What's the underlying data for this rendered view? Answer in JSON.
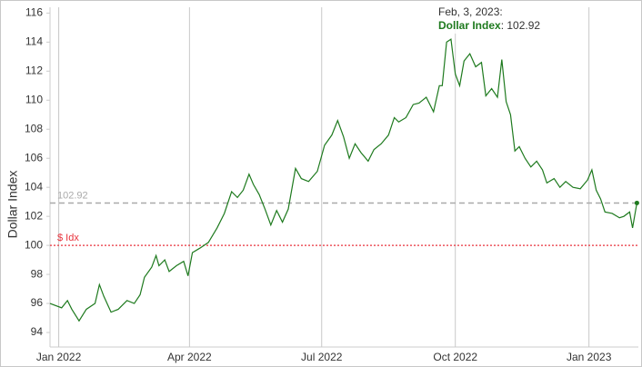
{
  "chart_data": {
    "type": "line",
    "y_label": "Dollar Index",
    "series": [
      {
        "name": "Dollar Index",
        "color": "#1e7a1e",
        "x": [
          -6,
          2,
          6,
          9,
          14,
          19,
          25,
          28,
          31,
          36,
          41,
          47,
          52,
          56,
          59,
          64,
          67,
          69,
          73,
          76,
          81,
          86,
          89,
          92,
          97,
          103,
          109,
          114,
          119,
          123,
          127,
          131,
          134,
          138,
          142,
          146,
          150,
          154,
          158,
          163,
          167,
          172,
          178,
          183,
          188,
          192,
          196,
          200,
          204,
          208,
          213,
          217,
          222,
          227,
          231,
          234,
          239,
          244,
          248,
          253,
          258,
          262,
          264,
          267,
          270,
          273,
          276,
          279,
          283,
          287,
          291,
          294,
          298,
          302,
          305,
          308,
          311,
          314,
          317,
          321,
          325,
          329,
          333,
          336,
          341,
          345,
          349,
          354,
          359,
          364,
          367,
          370,
          373,
          376,
          381,
          386,
          389,
          393,
          395,
          398
        ],
        "values": [
          96.0,
          95.7,
          96.2,
          95.6,
          94.8,
          95.6,
          96.0,
          97.3,
          96.5,
          95.4,
          95.6,
          96.2,
          96.0,
          96.6,
          97.8,
          98.5,
          99.3,
          98.6,
          99.0,
          98.2,
          98.6,
          98.9,
          97.9,
          99.5,
          99.8,
          100.2,
          101.2,
          102.2,
          103.7,
          103.3,
          103.8,
          104.9,
          104.2,
          103.5,
          102.5,
          101.4,
          102.4,
          101.6,
          102.5,
          105.3,
          104.6,
          104.4,
          105.1,
          106.9,
          107.6,
          108.6,
          107.5,
          106.0,
          107.0,
          106.4,
          105.8,
          106.6,
          107.0,
          107.6,
          108.8,
          108.5,
          108.8,
          109.7,
          109.8,
          110.2,
          109.2,
          111.0,
          111.0,
          114.0,
          114.2,
          111.8,
          111.0,
          112.7,
          113.2,
          112.3,
          112.6,
          110.3,
          110.8,
          110.2,
          112.8,
          109.9,
          109.0,
          106.5,
          106.8,
          106.0,
          105.4,
          105.8,
          105.2,
          104.3,
          104.6,
          104.0,
          104.4,
          104.0,
          103.9,
          104.5,
          105.2,
          103.8,
          103.2,
          102.3,
          102.2,
          101.9,
          102.0,
          102.3,
          101.2,
          102.92
        ]
      }
    ],
    "xlim": [
      -6,
      399
    ],
    "xticks": [
      {
        "value": 0,
        "label": "Jan 2022"
      },
      {
        "value": 90,
        "label": "Apr 2022"
      },
      {
        "value": 181,
        "label": "Jul 2022"
      },
      {
        "value": 273,
        "label": "Oct 2022"
      },
      {
        "value": 365,
        "label": "Jan 2023"
      }
    ],
    "ylim": [
      93,
      116.4
    ],
    "yticks": [
      94,
      96,
      98,
      100,
      102,
      104,
      106,
      108,
      110,
      112,
      114,
      116
    ],
    "grid": "x",
    "reference_lines": [
      {
        "value": 102.92,
        "label": "102.92",
        "color": "#aaaaaa",
        "style": "dashed"
      },
      {
        "value": 100,
        "label": "$ Idx",
        "color": "#e8323c",
        "style": "dotted"
      }
    ],
    "tooltip": {
      "date": "Feb, 3, 2023:",
      "series": "Dollar Index",
      "value": 102.92
    }
  }
}
